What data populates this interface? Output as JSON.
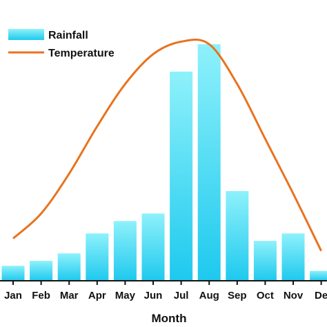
{
  "colors": {
    "rainfall_fill_top": "#8ef1fb",
    "rainfall_fill_bottom": "#1ec9ee",
    "temperature_line": "#e8731f",
    "axis": "#111111"
  },
  "chart_data": {
    "type": "bar",
    "categories": [
      "Jan",
      "Feb",
      "Mar",
      "Apr",
      "May",
      "Jun",
      "Jul",
      "Aug",
      "Sep",
      "Oct",
      "Nov",
      "De"
    ],
    "series": [
      {
        "name": "Rainfall",
        "type": "bar",
        "values": [
          6,
          8,
          11,
          19,
          24,
          27,
          84,
          95,
          36,
          16,
          19,
          4
        ]
      },
      {
        "name": "Temperature",
        "type": "line",
        "smooth": true,
        "values": [
          17,
          27,
          43,
          62,
          79,
          91,
          96,
          95,
          79,
          57,
          35,
          12
        ]
      }
    ],
    "xlabel": "Month",
    "ylabel": "",
    "ylim": [
      0,
      100
    ],
    "grid": false,
    "legend": "top-left"
  }
}
